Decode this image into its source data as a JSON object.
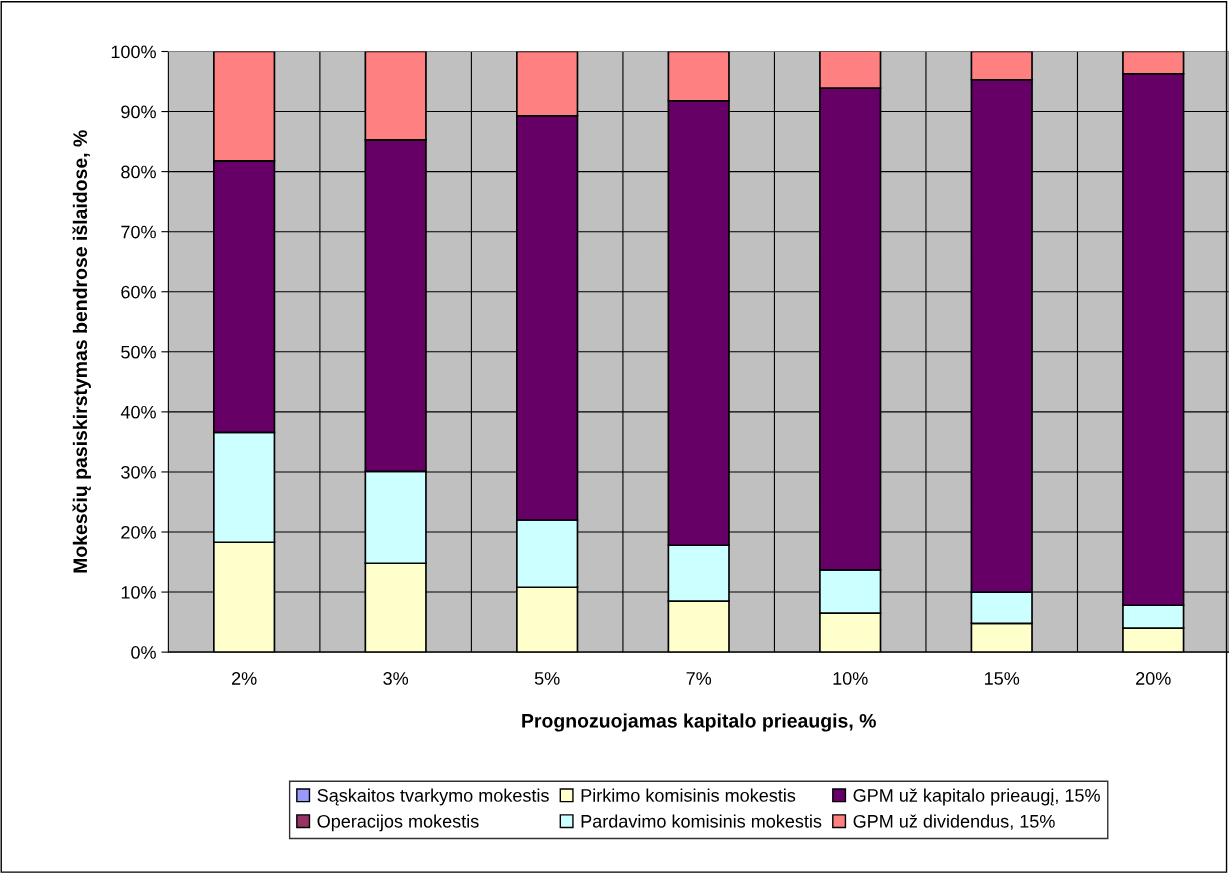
{
  "chart_data": {
    "type": "bar",
    "stacked": true,
    "xlabel": "Prognozuojamas kapitalo prieaugis, %",
    "ylabel": "Mokesčių pasiskirstymas bendrose išlaidose, %",
    "categories": [
      "2%",
      "3%",
      "5%",
      "7%",
      "10%",
      "15%",
      "20%"
    ],
    "series": [
      {
        "name": "Sąskaitos tvarkymo mokestis",
        "color": "#9999ff",
        "values": [
          0,
          0,
          0,
          0,
          0,
          0,
          0
        ]
      },
      {
        "name": "Operacijos mokestis",
        "color": "#993366",
        "values": [
          0,
          0,
          0,
          0,
          0,
          0,
          0
        ]
      },
      {
        "name": "Pirkimo komisinis mokestis",
        "color": "#ffffcc",
        "values": [
          18.3,
          14.8,
          10.8,
          8.5,
          6.5,
          4.8,
          4.0
        ]
      },
      {
        "name": "Pardavimo komisinis mokestis",
        "color": "#ccffff",
        "values": [
          18.3,
          15.3,
          11.2,
          9.3,
          7.2,
          5.2,
          3.8
        ]
      },
      {
        "name": "GPM už kapitalo prieaugį, 15%",
        "color": "#660066",
        "values": [
          45.2,
          55.2,
          67.3,
          74.0,
          80.2,
          85.3,
          88.5
        ]
      },
      {
        "name": "GPM už dividendus, 15%",
        "color": "#ff8080",
        "values": [
          18.2,
          14.7,
          10.7,
          8.2,
          6.2,
          4.7,
          3.7
        ]
      }
    ],
    "ylim": [
      0,
      100
    ],
    "yticks": [
      {
        "value": 0,
        "label": "0%"
      },
      {
        "value": 10,
        "label": "10%"
      },
      {
        "value": 20,
        "label": "20%"
      },
      {
        "value": 30,
        "label": "30%"
      },
      {
        "value": 40,
        "label": "40%"
      },
      {
        "value": 50,
        "label": "50%"
      },
      {
        "value": 60,
        "label": "60%"
      },
      {
        "value": 70,
        "label": "70%"
      },
      {
        "value": 80,
        "label": "80%"
      },
      {
        "value": 90,
        "label": "90%"
      },
      {
        "value": 100,
        "label": "100%"
      }
    ],
    "grid": true,
    "legend": "bottom"
  }
}
